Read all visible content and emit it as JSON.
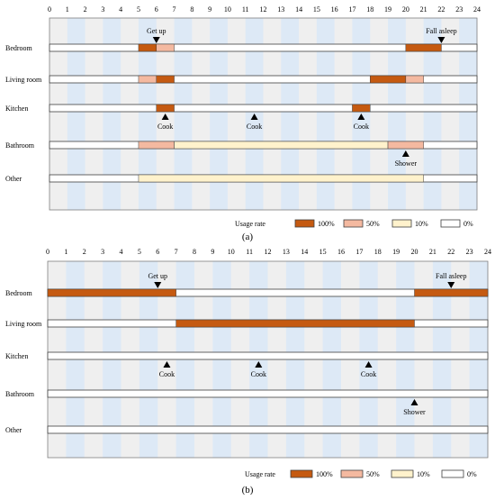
{
  "chart_data": [
    {
      "type": "heatmap",
      "panel_label": "(a)",
      "x_ticks": [
        "0",
        "1",
        "2",
        "3",
        "4",
        "5",
        "6",
        "7",
        "8",
        "9",
        "10",
        "11",
        "12",
        "13",
        "14",
        "15",
        "16",
        "17",
        "18",
        "19",
        "20",
        "21",
        "22",
        "23",
        "24"
      ],
      "xlim": [
        0,
        24
      ],
      "rooms": [
        "Bedroom",
        "Living room",
        "Kitchen",
        "Bathroom",
        "Other"
      ],
      "usage_segments": [
        {
          "room": "Bedroom",
          "start": 5,
          "end": 6,
          "rate": "100%"
        },
        {
          "room": "Bedroom",
          "start": 6,
          "end": 7,
          "rate": "50%"
        },
        {
          "room": "Bedroom",
          "start": 20,
          "end": 22,
          "rate": "100%"
        },
        {
          "room": "Living room",
          "start": 5,
          "end": 6,
          "rate": "50%"
        },
        {
          "room": "Living room",
          "start": 6,
          "end": 7,
          "rate": "100%"
        },
        {
          "room": "Living room",
          "start": 18,
          "end": 20,
          "rate": "100%"
        },
        {
          "room": "Living room",
          "start": 20,
          "end": 21,
          "rate": "50%"
        },
        {
          "room": "Kitchen",
          "start": 6,
          "end": 7,
          "rate": "100%"
        },
        {
          "room": "Kitchen",
          "start": 17,
          "end": 18,
          "rate": "100%"
        },
        {
          "room": "Bathroom",
          "start": 5,
          "end": 7,
          "rate": "50%"
        },
        {
          "room": "Bathroom",
          "start": 7,
          "end": 19,
          "rate": "10%"
        },
        {
          "room": "Bathroom",
          "start": 19,
          "end": 21,
          "rate": "50%"
        },
        {
          "room": "Other",
          "start": 5,
          "end": 21,
          "rate": "10%"
        }
      ],
      "events": [
        {
          "label": "Get up",
          "time": 6,
          "room": "Bedroom",
          "position": "above"
        },
        {
          "label": "Fall asleep",
          "time": 22,
          "room": "Bedroom",
          "position": "above"
        },
        {
          "label": "Cook",
          "time": 6.5,
          "room": "Kitchen",
          "position": "below"
        },
        {
          "label": "Cook",
          "time": 11.5,
          "room": "Kitchen",
          "position": "below"
        },
        {
          "label": "Cook",
          "time": 17.5,
          "room": "Kitchen",
          "position": "below"
        },
        {
          "label": "Shower",
          "time": 20,
          "room": "Bathroom",
          "position": "below"
        }
      ],
      "legend": {
        "title": "Usage rate",
        "items": [
          {
            "label": "100%",
            "color": "#c55a11"
          },
          {
            "label": "50%",
            "color": "#f4b9a0"
          },
          {
            "label": "10%",
            "color": "#fff2cc"
          },
          {
            "label": "0%",
            "color": "#ffffff"
          }
        ]
      }
    },
    {
      "type": "heatmap",
      "panel_label": "(b)",
      "x_ticks": [
        "0",
        "1",
        "2",
        "3",
        "4",
        "5",
        "6",
        "7",
        "8",
        "9",
        "10",
        "11",
        "12",
        "13",
        "14",
        "15",
        "16",
        "17",
        "18",
        "19",
        "20",
        "21",
        "22",
        "23",
        "24"
      ],
      "xlim": [
        0,
        24
      ],
      "rooms": [
        "Bedroom",
        "Living room",
        "Kitchen",
        "Bathroom",
        "Other"
      ],
      "usage_segments": [
        {
          "room": "Bedroom",
          "start": 0,
          "end": 7,
          "rate": "100%"
        },
        {
          "room": "Bedroom",
          "start": 20,
          "end": 24,
          "rate": "100%"
        },
        {
          "room": "Living room",
          "start": 7,
          "end": 20,
          "rate": "100%"
        }
      ],
      "events": [
        {
          "label": "Get up",
          "time": 6,
          "room": "Bedroom",
          "position": "above"
        },
        {
          "label": "Fall asleep",
          "time": 22,
          "room": "Bedroom",
          "position": "above"
        },
        {
          "label": "Cook",
          "time": 6.5,
          "room": "Kitchen",
          "position": "below"
        },
        {
          "label": "Cook",
          "time": 11.5,
          "room": "Kitchen",
          "position": "below"
        },
        {
          "label": "Cook",
          "time": 17.5,
          "room": "Kitchen",
          "position": "below"
        },
        {
          "label": "Shower",
          "time": 20,
          "room": "Bathroom",
          "position": "below"
        }
      ],
      "legend": {
        "title": "Usage rate",
        "items": [
          {
            "label": "100%",
            "color": "#c55a11"
          },
          {
            "label": "50%",
            "color": "#f4b9a0"
          },
          {
            "label": "10%",
            "color": "#fff2cc"
          },
          {
            "label": "0%",
            "color": "#ffffff"
          }
        ]
      }
    }
  ],
  "colors": {
    "stripe_gray": "#efefef",
    "stripe_blue": "#dde9f6",
    "track_stroke": "#404040",
    "grid_stroke": "#7f7f7f",
    "marker": "#000000"
  }
}
